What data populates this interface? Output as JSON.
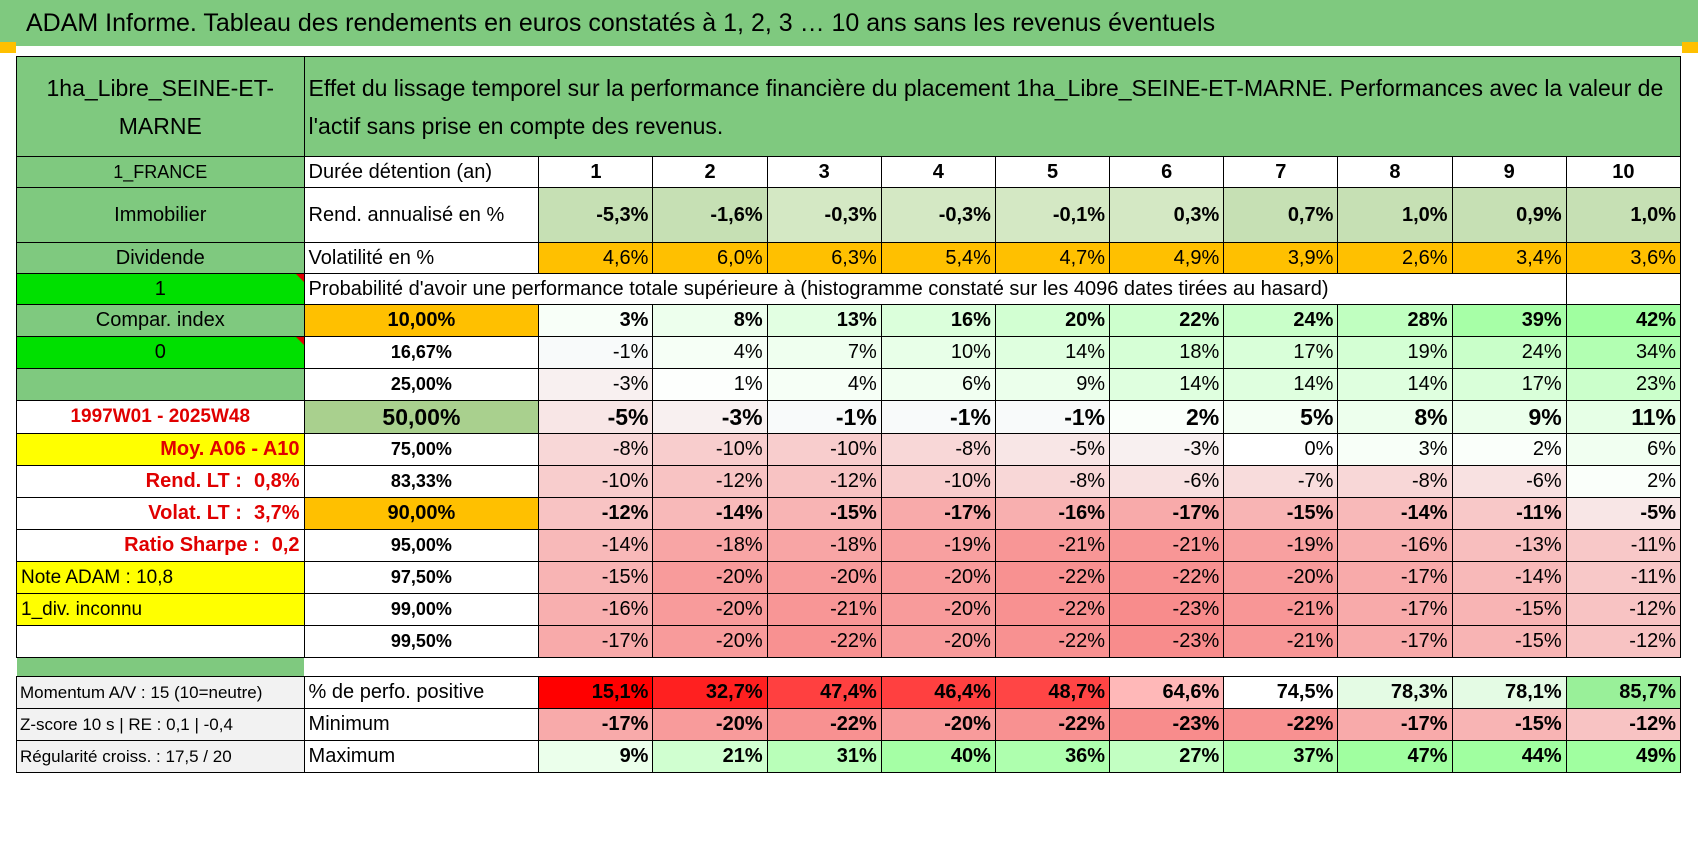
{
  "title": "ADAM Informe. Tableau des rendements en euros constatés à 1, 2, 3 … 10 ans sans les revenus éventuels",
  "header": {
    "asset": "1ha_Libre_SEINE-ET-MARNE",
    "description": "Effet du lissage temporel sur la performance financière du placement 1ha_Libre_SEINE-ET-MARNE. Performances avec la valeur de l'actif sans prise en compte des revenus."
  },
  "side": {
    "country": "1_FRANCE",
    "category": "Immobilier",
    "dividend": "Dividende",
    "input1": "1",
    "compar": "Compar. index",
    "input2": "0",
    "period": "1997W01 - 2025W48",
    "moy": "Moy. A06 - A10",
    "rend_lt_label": "Rend. LT :",
    "rend_lt_value": "0,8%",
    "volat_lt_label": "Volat. LT :",
    "volat_lt_value": "3,7%",
    "sharpe_label": "Ratio Sharpe :",
    "sharpe_value": "0,2",
    "note": "Note ADAM : 10,8",
    "div": "1_div. inconnu",
    "momentum": "Momentum A/V : 15 (10=neutre)",
    "zscore": "Z-score 10 s | RE : 0,1 | -0,4",
    "regularite": "Régularité croiss. : 17,5 / 20"
  },
  "row_labels": {
    "duration": "Durée détention (an)",
    "rend": "Rend. annualisé en %",
    "vol": "Volatilité en %",
    "prob": "Probabilité d'avoir une performance totale supérieure à (histogramme constaté sur les 4096 dates tirées au hasard)",
    "positive": "% de perfo. positive",
    "minimum": "Minimum",
    "maximum": "Maximum"
  },
  "years": [
    "1",
    "2",
    "3",
    "4",
    "5",
    "6",
    "7",
    "8",
    "9",
    "10"
  ],
  "rend": [
    "-5,3%",
    "-1,6%",
    "-0,3%",
    "-0,3%",
    "-0,1%",
    "0,3%",
    "0,7%",
    "1,0%",
    "0,9%",
    "1,0%"
  ],
  "vol": [
    "4,6%",
    "6,0%",
    "6,3%",
    "5,4%",
    "4,7%",
    "4,9%",
    "3,9%",
    "2,6%",
    "3,4%",
    "3,6%"
  ],
  "percentiles": [
    {
      "p": "10,00%",
      "values": [
        "3%",
        "8%",
        "13%",
        "16%",
        "20%",
        "22%",
        "24%",
        "28%",
        "39%",
        "42%"
      ]
    },
    {
      "p": "16,67%",
      "values": [
        "-1%",
        "4%",
        "7%",
        "10%",
        "14%",
        "18%",
        "17%",
        "19%",
        "24%",
        "34%"
      ]
    },
    {
      "p": "25,00%",
      "values": [
        "-3%",
        "1%",
        "4%",
        "6%",
        "9%",
        "14%",
        "14%",
        "14%",
        "17%",
        "23%"
      ]
    },
    {
      "p": "50,00%",
      "values": [
        "-5%",
        "-3%",
        "-1%",
        "-1%",
        "-1%",
        "2%",
        "5%",
        "8%",
        "9%",
        "11%"
      ]
    },
    {
      "p": "75,00%",
      "values": [
        "-8%",
        "-10%",
        "-10%",
        "-8%",
        "-5%",
        "-3%",
        "0%",
        "3%",
        "2%",
        "6%"
      ]
    },
    {
      "p": "83,33%",
      "values": [
        "-10%",
        "-12%",
        "-12%",
        "-10%",
        "-8%",
        "-6%",
        "-7%",
        "-8%",
        "-6%",
        "2%"
      ]
    },
    {
      "p": "90,00%",
      "values": [
        "-12%",
        "-14%",
        "-15%",
        "-17%",
        "-16%",
        "-17%",
        "-15%",
        "-14%",
        "-11%",
        "-5%"
      ]
    },
    {
      "p": "95,00%",
      "values": [
        "-14%",
        "-18%",
        "-18%",
        "-19%",
        "-21%",
        "-21%",
        "-19%",
        "-16%",
        "-13%",
        "-11%"
      ]
    },
    {
      "p": "97,50%",
      "values": [
        "-15%",
        "-20%",
        "-20%",
        "-20%",
        "-22%",
        "-22%",
        "-20%",
        "-17%",
        "-14%",
        "-11%"
      ]
    },
    {
      "p": "99,00%",
      "values": [
        "-16%",
        "-20%",
        "-21%",
        "-20%",
        "-22%",
        "-23%",
        "-21%",
        "-17%",
        "-15%",
        "-12%"
      ]
    },
    {
      "p": "99,50%",
      "values": [
        "-17%",
        "-20%",
        "-22%",
        "-20%",
        "-22%",
        "-23%",
        "-21%",
        "-17%",
        "-15%",
        "-12%"
      ]
    }
  ],
  "positive": [
    "15,1%",
    "32,7%",
    "47,4%",
    "46,4%",
    "48,7%",
    "64,6%",
    "74,5%",
    "78,3%",
    "78,1%",
    "85,7%"
  ],
  "minimum": [
    "-17%",
    "-20%",
    "-22%",
    "-20%",
    "-22%",
    "-23%",
    "-22%",
    "-17%",
    "-15%",
    "-12%"
  ],
  "maximum": [
    "9%",
    "21%",
    "31%",
    "40%",
    "36%",
    "27%",
    "37%",
    "47%",
    "44%",
    "49%"
  ],
  "colors": {
    "title_bg": "#7fc97f",
    "label_green": "#7fc97f",
    "input_green": "#00e000",
    "yellow": "#ffff00",
    "orange": "#ffc000",
    "red_text": "#e00000",
    "positive_pct_colors": [
      "#ff0000",
      "#ff2020",
      "#ff4040",
      "#ff4040",
      "#ff4545",
      "#ffb8b8",
      "#ffffff",
      "#e4fbe4",
      "#e4fbe4",
      "#99f099"
    ]
  }
}
